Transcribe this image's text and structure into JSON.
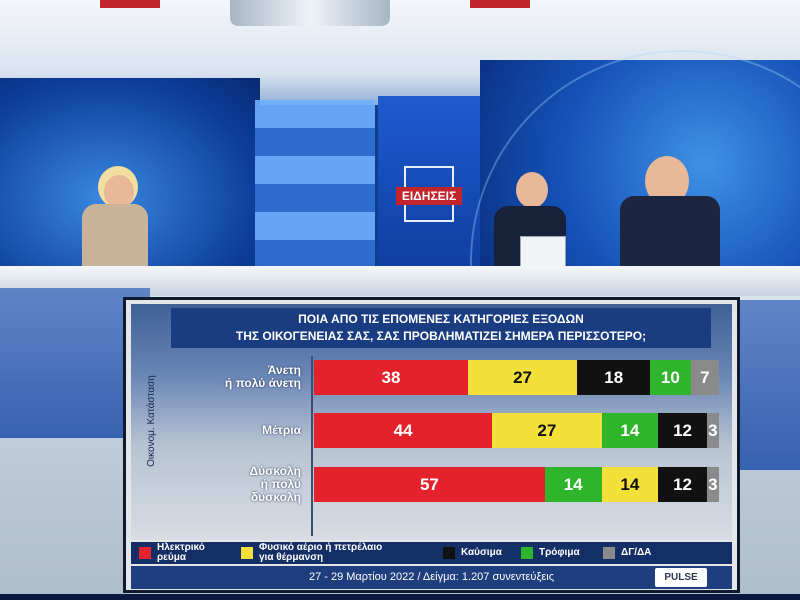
{
  "branding": {
    "logo_text": "ΕΙΔΗΣΕΙΣ",
    "pulse_logo": "PULSE"
  },
  "chart_data": {
    "type": "bar",
    "orientation": "horizontal",
    "stacked": true,
    "title": "ΠΟΙΑ ΑΠΟ ΤΙΣ ΕΠΟΜΕΝΕΣ ΚΑΤΗΓΟΡΙΕΣ ΕΞΟΔΩΝ",
    "subtitle": "ΤΗΣ ΟΙΚΟΓΕΝΕΙΑΣ ΣΑΣ, ΣΑΣ ΠΡΟΒΛΗΜΑΤΙΖΕΙ ΣΗΜΕΡΑ ΠΕΡΙΣΣΟΤΕΡΟ;",
    "ylabel": "Οικονομ. Κατάσταση",
    "xlim": [
      0,
      100
    ],
    "series_colors": {
      "Ηλεκτρικό ρεύμα": "#e3222b",
      "Φυσικό αέριο ή πετρέλαιο για θέρμανση": "#f3e03a",
      "Καύσιμα": "#111111",
      "Τρόφιμα": "#2fb52c",
      "ΔΓ/ΔΑ": "#8a8a8a"
    },
    "rows": [
      {
        "label_line1": "Άνετη",
        "label_line2": "ή πολύ άνετη",
        "label_line3": "",
        "segments": [
          {
            "series": "Ηλεκτρικό ρεύμα",
            "value": 38
          },
          {
            "series": "Φυσικό αέριο ή πετρέλαιο για θέρμανση",
            "value": 27
          },
          {
            "series": "Καύσιμα",
            "value": 18
          },
          {
            "series": "Τρόφιμα",
            "value": 10
          },
          {
            "series": "ΔΓ/ΔΑ",
            "value": 7
          }
        ]
      },
      {
        "label_line1": "Μέτρια",
        "label_line2": "",
        "label_line3": "",
        "segments": [
          {
            "series": "Ηλεκτρικό ρεύμα",
            "value": 44
          },
          {
            "series": "Φυσικό αέριο ή πετρέλαιο για θέρμανση",
            "value": 27
          },
          {
            "series": "Τρόφιμα",
            "value": 14
          },
          {
            "series": "Καύσιμα",
            "value": 12
          },
          {
            "series": "ΔΓ/ΔΑ",
            "value": 3
          }
        ]
      },
      {
        "label_line1": "Δύσκολη",
        "label_line2": "ή πολύ",
        "label_line3": "δύσκολη",
        "segments": [
          {
            "series": "Ηλεκτρικό ρεύμα",
            "value": 57
          },
          {
            "series": "Τρόφιμα",
            "value": 14
          },
          {
            "series": "Φυσικό αέριο ή πετρέλαιο για θέρμανση",
            "value": 14
          },
          {
            "series": "Καύσιμα",
            "value": 12
          },
          {
            "series": "ΔΓ/ΔΑ",
            "value": 3
          }
        ]
      }
    ],
    "legend": [
      {
        "line1": "Ηλεκτρικό",
        "line2": "ρεύμα",
        "color": "#e3222b"
      },
      {
        "line1": "Φυσικό αέριο ή πετρέλαιο",
        "line2": "για θέρμανση",
        "color": "#f3e03a"
      },
      {
        "line1": "Καύσιμα",
        "line2": "",
        "color": "#111111"
      },
      {
        "line1": "Τρόφιμα",
        "line2": "",
        "color": "#2fb52c"
      },
      {
        "line1": "ΔΓ/ΔΑ",
        "line2": "",
        "color": "#8a8a8a"
      }
    ],
    "footer": "27 - 29 Μαρτίου 2022 / Δείγμα: 1.207 συνεντεύξεις"
  }
}
